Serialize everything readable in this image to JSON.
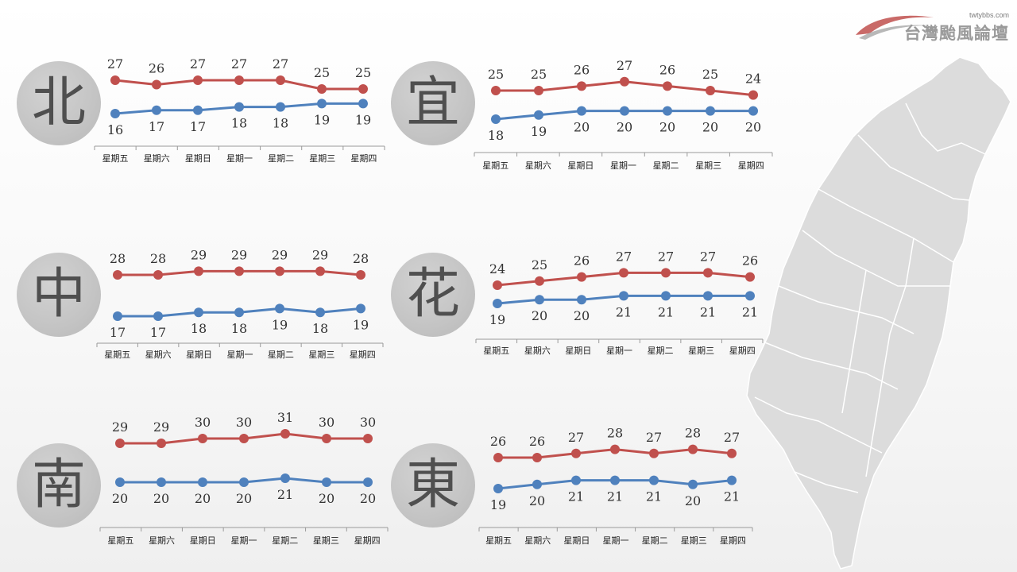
{
  "brand": {
    "url": "twtybbs.com",
    "name": "台灣颱風論壇",
    "accent": "#c0504d"
  },
  "colors": {
    "high": "#c0504d",
    "low": "#4f81bd",
    "axis": "#9a9a9a",
    "circle": "#c4c4c4",
    "map": "#dcdcdc"
  },
  "days": [
    "星期五",
    "星期六",
    "星期日",
    "星期一",
    "星期二",
    "星期三",
    "星期四"
  ],
  "chart_data": [
    {
      "type": "line",
      "title": "北",
      "categories": [
        "星期五",
        "星期六",
        "星期日",
        "星期一",
        "星期二",
        "星期三",
        "星期四"
      ],
      "series": [
        {
          "values": [
            27,
            26,
            27,
            27,
            27,
            25,
            25
          ],
          "color": "#c0504d"
        },
        {
          "values": [
            16,
            17,
            17,
            18,
            18,
            19,
            19
          ],
          "color": "#4f81bd"
        }
      ]
    },
    {
      "type": "line",
      "title": "宜",
      "categories": [
        "星期五",
        "星期六",
        "星期日",
        "星期一",
        "星期二",
        "星期三",
        "星期四"
      ],
      "series": [
        {
          "values": [
            25,
            25,
            26,
            27,
            26,
            25,
            24
          ],
          "color": "#c0504d"
        },
        {
          "values": [
            18,
            19,
            20,
            20,
            20,
            20,
            20
          ],
          "color": "#4f81bd"
        }
      ]
    },
    {
      "type": "line",
      "title": "中",
      "categories": [
        "星期五",
        "星期六",
        "星期日",
        "星期一",
        "星期二",
        "星期三",
        "星期四"
      ],
      "series": [
        {
          "values": [
            28,
            28,
            29,
            29,
            29,
            29,
            28
          ],
          "color": "#c0504d"
        },
        {
          "values": [
            17,
            17,
            18,
            18,
            19,
            18,
            19
          ],
          "color": "#4f81bd"
        }
      ]
    },
    {
      "type": "line",
      "title": "花",
      "categories": [
        "星期五",
        "星期六",
        "星期日",
        "星期一",
        "星期二",
        "星期三",
        "星期四"
      ],
      "series": [
        {
          "values": [
            24,
            25,
            26,
            27,
            27,
            27,
            26
          ],
          "color": "#c0504d"
        },
        {
          "values": [
            19,
            20,
            20,
            21,
            21,
            21,
            21
          ],
          "color": "#4f81bd"
        }
      ]
    },
    {
      "type": "line",
      "title": "南",
      "categories": [
        "星期五",
        "星期六",
        "星期日",
        "星期一",
        "星期二",
        "星期三",
        "星期四"
      ],
      "series": [
        {
          "values": [
            29,
            29,
            30,
            30,
            31,
            30,
            30
          ],
          "color": "#c0504d"
        },
        {
          "values": [
            20,
            20,
            20,
            20,
            21,
            20,
            20
          ],
          "color": "#4f81bd"
        }
      ]
    },
    {
      "type": "line",
      "title": "東",
      "categories": [
        "星期五",
        "星期六",
        "星期日",
        "星期一",
        "星期二",
        "星期三",
        "星期四"
      ],
      "series": [
        {
          "values": [
            26,
            26,
            27,
            28,
            27,
            28,
            27
          ],
          "color": "#c0504d"
        },
        {
          "values": [
            19,
            20,
            21,
            21,
            21,
            20,
            21
          ],
          "color": "#4f81bd"
        }
      ]
    }
  ]
}
